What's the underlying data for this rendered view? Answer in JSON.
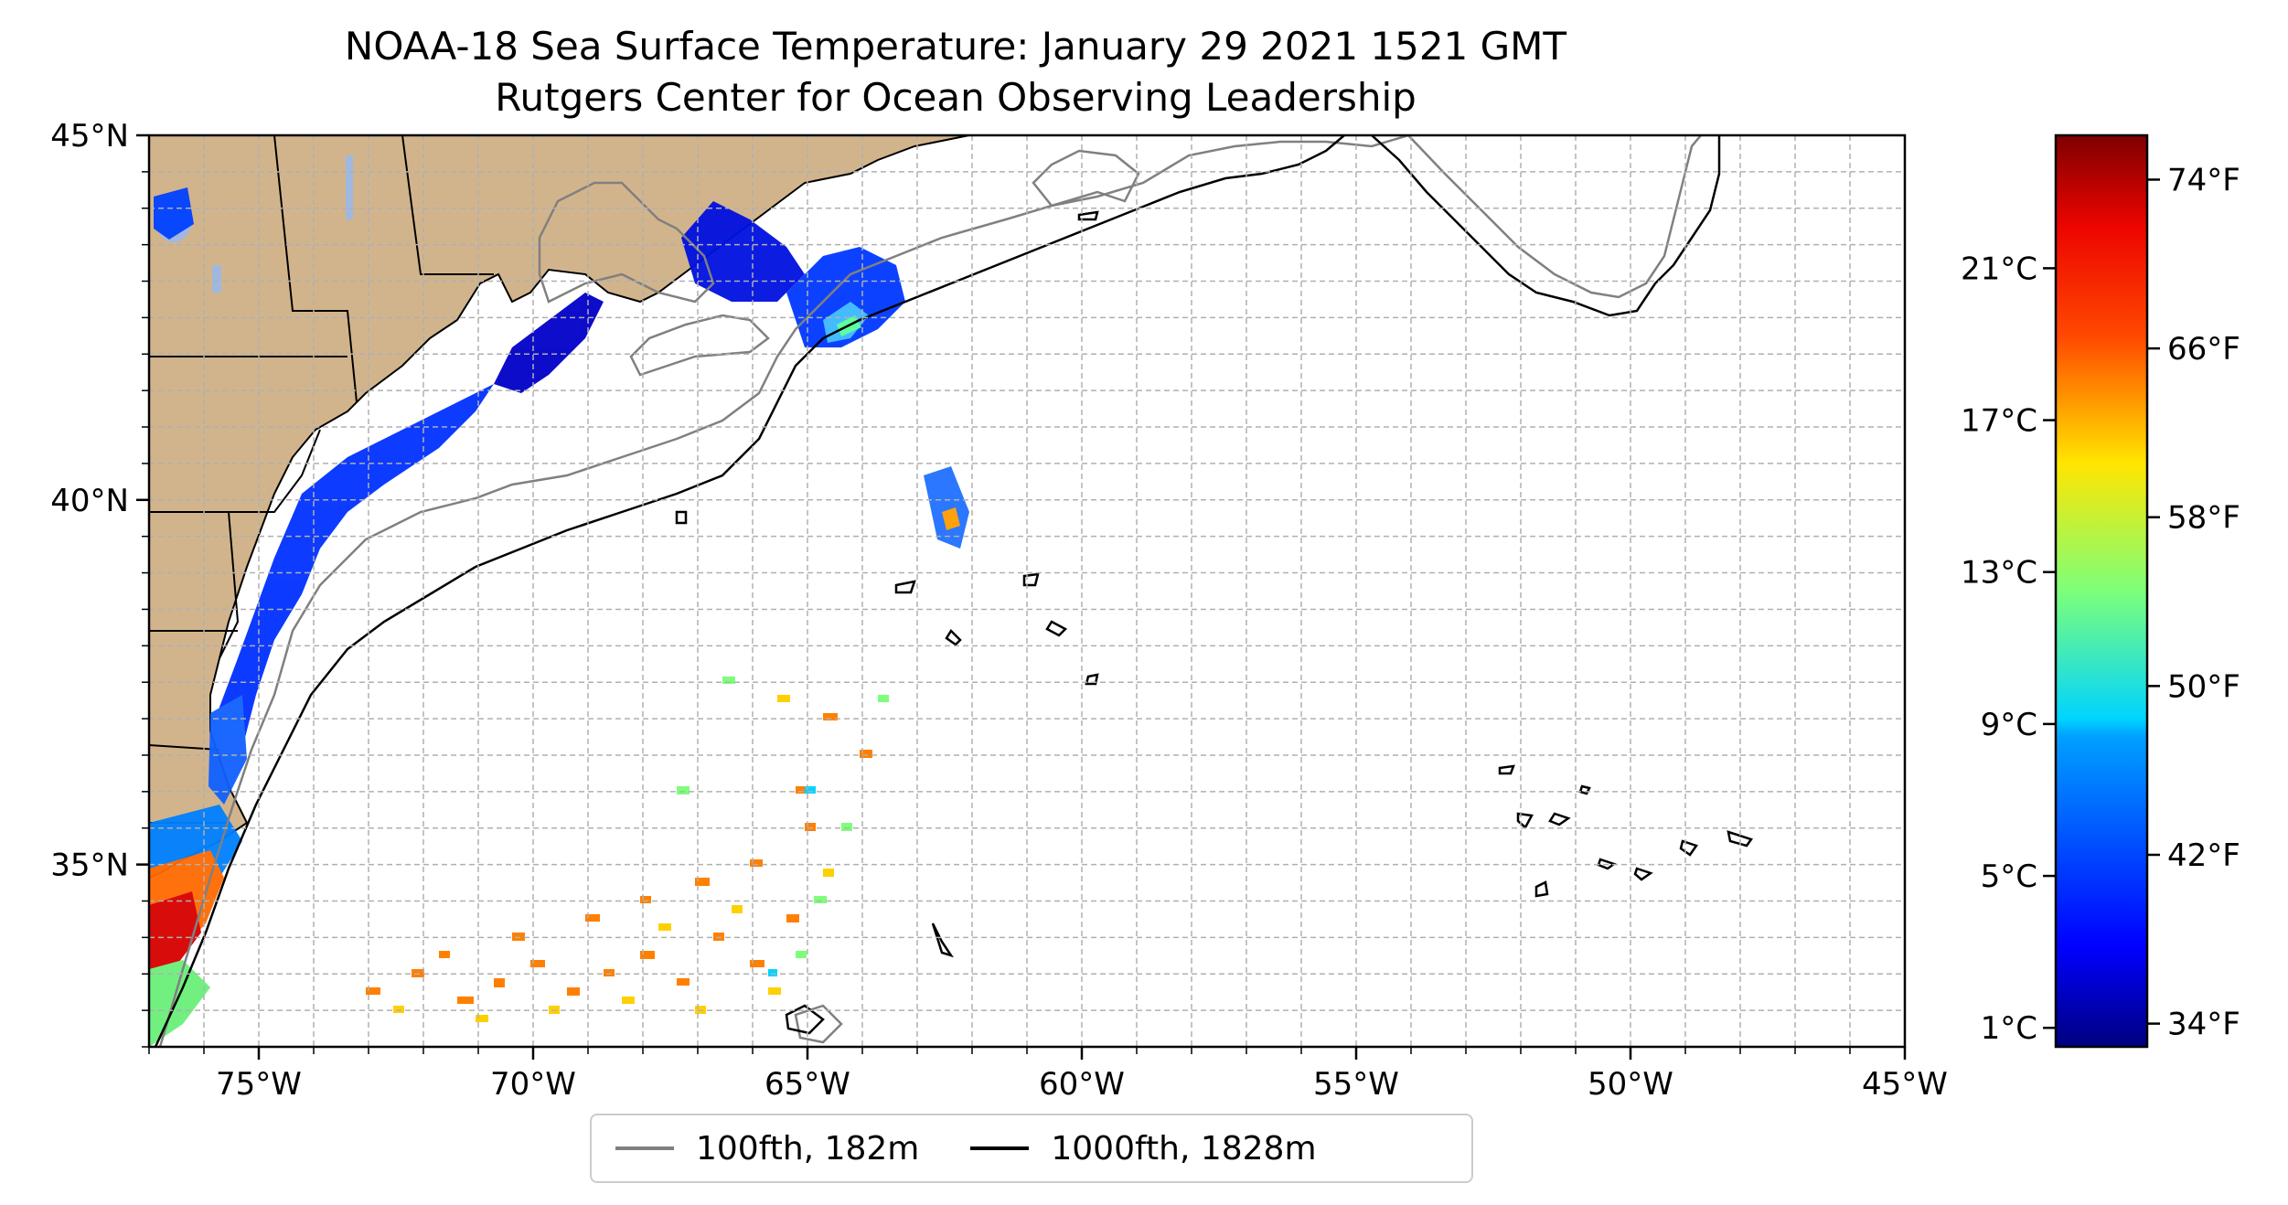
{
  "title": {
    "line1": "NOAA-18 Sea Surface Temperature: January 29 2021 1521 GMT",
    "line2": "Rutgers Center for Ocean Observing Leadership"
  },
  "map": {
    "lon_range": [
      -77,
      -45
    ],
    "lat_range": [
      32.5,
      45
    ],
    "lon_ticks": [
      {
        "value": -75,
        "label": "75°W"
      },
      {
        "value": -70,
        "label": "70°W"
      },
      {
        "value": -65,
        "label": "65°W"
      },
      {
        "value": -60,
        "label": "60°W"
      },
      {
        "value": -55,
        "label": "55°W"
      },
      {
        "value": -50,
        "label": "50°W"
      },
      {
        "value": -45,
        "label": "45°W"
      }
    ],
    "lat_ticks": [
      {
        "value": 35,
        "label": "35°N"
      },
      {
        "value": 40,
        "label": "40°N"
      },
      {
        "value": 45,
        "label": "45°N"
      }
    ],
    "grid": true,
    "land_color": "#d2b48c",
    "water_color": "#ffffff"
  },
  "colorbar": {
    "colormap": "jet",
    "range_c": [
      0.5,
      24.5
    ],
    "celsius_ticks": [
      {
        "value": 1,
        "label": "1°C"
      },
      {
        "value": 5,
        "label": "5°C"
      },
      {
        "value": 9,
        "label": "9°C"
      },
      {
        "value": 13,
        "label": "13°C"
      },
      {
        "value": 17,
        "label": "17°C"
      },
      {
        "value": 21,
        "label": "21°C"
      }
    ],
    "fahrenheit_ticks": [
      {
        "value": 34,
        "label": "34°F"
      },
      {
        "value": 42,
        "label": "42°F"
      },
      {
        "value": 50,
        "label": "50°F"
      },
      {
        "value": 58,
        "label": "58°F"
      },
      {
        "value": 66,
        "label": "66°F"
      },
      {
        "value": 74,
        "label": "74°F"
      }
    ]
  },
  "legend": {
    "items": [
      {
        "label": "100fth, 182m",
        "color": "#808080"
      },
      {
        "label": "1000fth, 1828m",
        "color": "#000000"
      }
    ]
  }
}
